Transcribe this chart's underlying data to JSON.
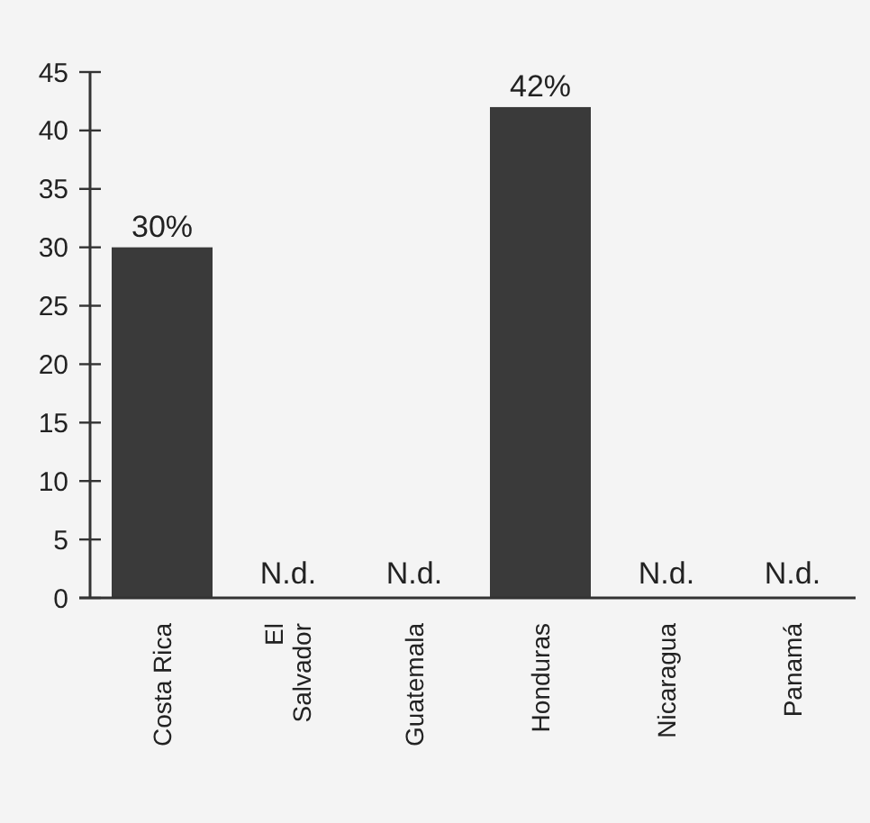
{
  "chart_data": {
    "type": "bar",
    "categories": [
      "Costa Rica",
      "El Salvador",
      "Guatemala",
      "Honduras",
      "Nicaragua",
      "Panamá"
    ],
    "values": [
      30,
      null,
      null,
      42,
      null,
      null
    ],
    "value_labels": [
      "30%",
      "N.d.",
      "N.d.",
      "42%",
      "N.d.",
      "N.d."
    ],
    "color": "#3a3a3a",
    "ylim": [
      0,
      45
    ],
    "yticks": [
      0,
      5,
      10,
      15,
      20,
      25,
      30,
      35,
      40,
      45
    ]
  }
}
